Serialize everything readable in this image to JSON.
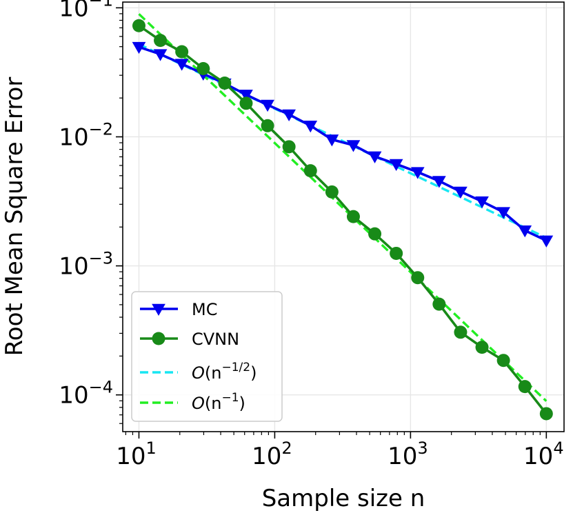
{
  "chart_data": {
    "type": "line",
    "xlabel": "Sample size n",
    "ylabel": "Root Mean Square Error",
    "xscale": "log",
    "yscale": "log",
    "xlim": [
      7.6,
      13500
    ],
    "ylim": [
      5.19e-05,
      0.1108
    ],
    "grid": true,
    "legend_position": "lower-left",
    "x_ticks": [
      {
        "base": "10",
        "exp": "1",
        "value": 10
      },
      {
        "base": "10",
        "exp": "2",
        "value": 100
      },
      {
        "base": "10",
        "exp": "3",
        "value": 1000
      },
      {
        "base": "10",
        "exp": "4",
        "value": 10000
      }
    ],
    "y_ticks": [
      {
        "base": "10",
        "exp": "−1",
        "value": 0.1
      },
      {
        "base": "10",
        "exp": "−2",
        "value": 0.01
      },
      {
        "base": "10",
        "exp": "−3",
        "value": 0.001
      },
      {
        "base": "10",
        "exp": "−4",
        "value": 0.0001
      }
    ],
    "x": [
      10,
      14.38,
      20.69,
      29.76,
      42.81,
      61.58,
      88.59,
      127.4,
      183.3,
      263.7,
      379.3,
      545.6,
      784.8,
      1129,
      1624,
      2336,
      3360,
      4833,
      6952,
      10000
    ],
    "series": [
      {
        "name": "MC",
        "color": "#0000ee",
        "marker": "triangle-down",
        "style": "solid",
        "values": [
          0.0497,
          0.0437,
          0.0368,
          0.0308,
          0.0259,
          0.0212,
          0.0177,
          0.0149,
          0.0122,
          0.00953,
          0.00862,
          0.00705,
          0.00615,
          0.00533,
          0.00455,
          0.00376,
          0.00316,
          0.00261,
          0.00188,
          0.00157
        ]
      },
      {
        "name": "CVNN",
        "color": "#188a18",
        "marker": "circle",
        "style": "solid",
        "values": [
          0.0727,
          0.0559,
          0.0457,
          0.0338,
          0.0261,
          0.0182,
          0.0122,
          0.00838,
          0.00546,
          0.00374,
          0.00241,
          0.00177,
          0.00125,
          0.00081,
          0.000505,
          0.000306,
          0.000234,
          0.000185,
          0.000116,
          7.15e-05
        ]
      },
      {
        "name": "O(n^{-1/2})",
        "label_main": "O(n",
        "label_exp": "−1/2",
        "label_close": ")",
        "color": "#17e6f2",
        "style": "dashed",
        "x": [
          10,
          10000
        ],
        "values": [
          0.0523,
          0.00165
        ]
      },
      {
        "name": "O(n^{-1})",
        "label_main": "O(n",
        "label_exp": "−1",
        "label_close": ")",
        "color": "#22ee22",
        "style": "dashed",
        "x": [
          10,
          10000
        ],
        "values": [
          0.0895,
          8.95e-05
        ]
      }
    ]
  }
}
